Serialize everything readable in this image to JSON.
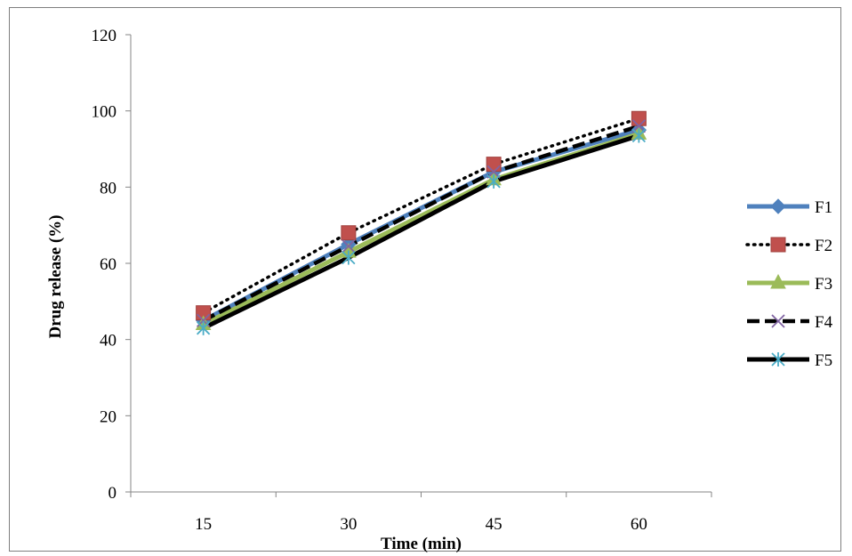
{
  "chart_data": {
    "type": "line",
    "title": "",
    "xlabel": "Time (min)",
    "ylabel": "Drug release (%)",
    "categories": [
      "15",
      "30",
      "45",
      "60"
    ],
    "ylim": [
      0,
      120
    ],
    "yticks": [
      "0",
      "20",
      "40",
      "60",
      "80",
      "100",
      "120"
    ],
    "grid": false,
    "legend_position": "right",
    "series": [
      {
        "name": "F1",
        "values": [
          45,
          65,
          84,
          95
        ],
        "color": "#4f81bd",
        "marker": "diamond",
        "line": "solid"
      },
      {
        "name": "F2",
        "values": [
          47,
          68,
          86,
          98
        ],
        "color": "#c0504d",
        "marker": "square",
        "line": "dotted"
      },
      {
        "name": "F3",
        "values": [
          44,
          63,
          82,
          94
        ],
        "color": "#9bbb59",
        "marker": "triangle",
        "line": "solid"
      },
      {
        "name": "F4",
        "values": [
          45,
          64.5,
          84,
          96
        ],
        "color": "#8064a2",
        "marker": "x",
        "line": "dashed"
      },
      {
        "name": "F5",
        "values": [
          43,
          61.5,
          81.5,
          93.5
        ],
        "color": "#4bacc6",
        "marker": "asterisk",
        "line": "solid-black"
      }
    ]
  }
}
